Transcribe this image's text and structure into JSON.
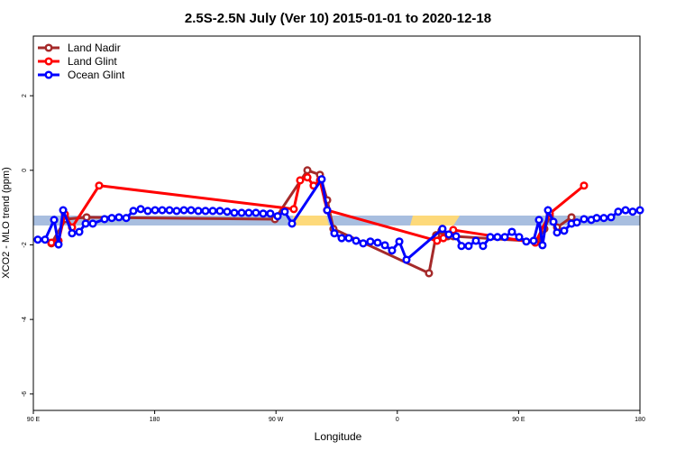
{
  "chart_data": {
    "type": "line",
    "title": "2.5S-2.5N July (Ver 10)   2015-01-01 to 2020-12-18",
    "x_label": "Longitude",
    "y_label": "XCO2 - MLO trend (ppm)",
    "xlim": [
      0,
      450
    ],
    "ylim": [
      -6.44,
      3.6
    ],
    "xticks": [
      {
        "value": 0,
        "label": "90 E"
      },
      {
        "value": 90,
        "label": "180"
      },
      {
        "value": 180,
        "label": "90 W"
      },
      {
        "value": 270,
        "label": "0"
      },
      {
        "value": 360,
        "label": "90 E"
      },
      {
        "value": 450,
        "label": "180"
      }
    ],
    "yticks": [
      -6,
      -4,
      -2,
      0,
      2
    ],
    "legend": "top-left",
    "series": [
      {
        "name": "Land Nadir",
        "color": "#a52a2a",
        "x": [
          13.4,
          24.1,
          39.5,
          179.2,
          203.3,
          212.6,
          218,
          222.6,
          293.5,
          298.8,
          302.8,
          307.5,
          311.5,
          373.8,
          379.1,
          383.1,
          388.5,
          399.2
        ],
        "values": [
          -1.96,
          -1.31,
          -1.26,
          -1.31,
          0,
          -0.12,
          -0.8,
          -1.57,
          -2.76,
          -1.74,
          -1.62,
          -1.77,
          -1.77,
          -1.91,
          -1.57,
          -1.23,
          -1.53,
          -1.26
        ]
      },
      {
        "name": "Land Glint",
        "color": "#ff0000",
        "x": [
          13.4,
          18.7,
          23.4,
          28.7,
          48.8,
          193.2,
          197.9,
          203.3,
          207.9,
          212.6,
          217.9,
          299.5,
          304.2,
          311.5,
          372.4,
          383.1,
          408.5
        ],
        "values": [
          -1.94,
          -1.89,
          -1.18,
          -1.53,
          -0.41,
          -1.04,
          -0.27,
          -0.19,
          -0.41,
          -0.27,
          -1.07,
          -1.89,
          -1.82,
          -1.6,
          -1.94,
          -1.16,
          -0.41
        ]
      },
      {
        "name": "Ocean Glint",
        "color": "#0000ff",
        "x": [
          3.3,
          8.7,
          15.4,
          18.7,
          22.1,
          28.7,
          34.1,
          38.8,
          44.1,
          52.8,
          58.2,
          63.5,
          68.9,
          74.2,
          79.6,
          84.9,
          90.3,
          95.6,
          101,
          106.3,
          111.7,
          117,
          122.4,
          127.7,
          133.1,
          138.4,
          143.8,
          149.1,
          154.5,
          159.8,
          165.1,
          170.5,
          175.8,
          181.2,
          186.5,
          191.9,
          213.9,
          218,
          223.3,
          228.7,
          234,
          239.4,
          244.7,
          250,
          255.4,
          260.8,
          266.1,
          271.5,
          276.8,
          303.5,
          308.2,
          313.6,
          317.6,
          322.9,
          328.3,
          333.6,
          339,
          344.3,
          349.7,
          355,
          360.4,
          365.7,
          371.1,
          375.1,
          377.7,
          381.8,
          385.8,
          388.5,
          393.8,
          399.2,
          403.2,
          408.5,
          413.9,
          417.9,
          423.2,
          428.6,
          433.9,
          439.3,
          444.6,
          450
        ],
        "values": [
          -1.86,
          -1.86,
          -1.33,
          -1.99,
          -1.07,
          -1.69,
          -1.65,
          -1.43,
          -1.43,
          -1.31,
          -1.28,
          -1.26,
          -1.28,
          -1.09,
          -1.04,
          -1.09,
          -1.07,
          -1.07,
          -1.07,
          -1.09,
          -1.07,
          -1.07,
          -1.09,
          -1.09,
          -1.09,
          -1.09,
          -1.11,
          -1.14,
          -1.14,
          -1.14,
          -1.14,
          -1.16,
          -1.16,
          -1.23,
          -1.11,
          -1.43,
          -0.24,
          -1.07,
          -1.69,
          -1.82,
          -1.82,
          -1.89,
          -1.96,
          -1.91,
          -1.94,
          -2.01,
          -2.15,
          -1.91,
          -2.4,
          -1.57,
          -1.72,
          -1.77,
          -2.03,
          -2.03,
          -1.89,
          -2.03,
          -1.79,
          -1.79,
          -1.79,
          -1.65,
          -1.79,
          -1.91,
          -1.89,
          -1.33,
          -2.01,
          -1.07,
          -1.38,
          -1.67,
          -1.62,
          -1.43,
          -1.4,
          -1.31,
          -1.33,
          -1.28,
          -1.28,
          -1.26,
          -1.11,
          -1.07,
          -1.11,
          -1.07
        ]
      }
    ]
  }
}
